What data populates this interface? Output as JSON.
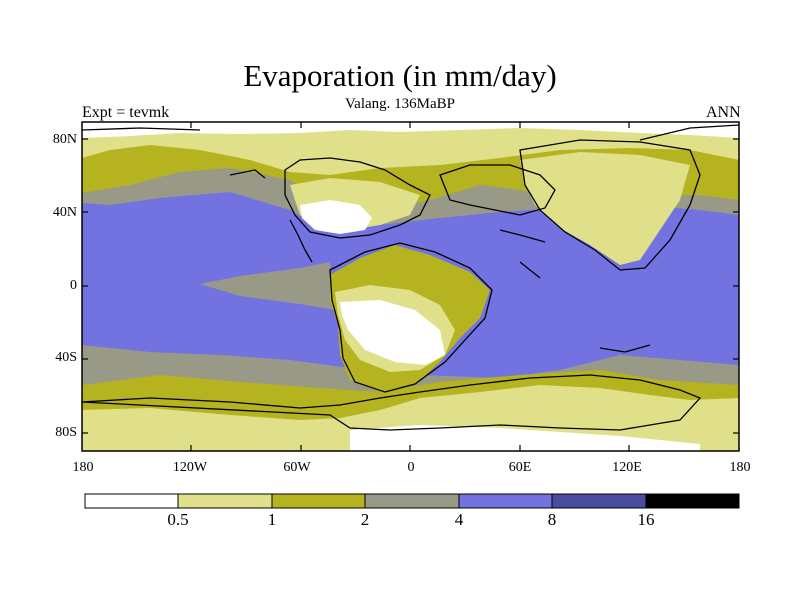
{
  "title": "Evaporation (in mm/day)",
  "subtitle": "Valang. 136MaBP",
  "left_label": "Expt = tevmk",
  "right_label": "ANN",
  "y_ticks": [
    "80N",
    "40N",
    "0",
    "40S",
    "80S"
  ],
  "x_ticks": [
    "180",
    "120W",
    "60W",
    "0",
    "60E",
    "120E",
    "180"
  ],
  "colorbar": {
    "labels": [
      "0.5",
      "1",
      "2",
      "4",
      "8",
      "16"
    ],
    "colors": [
      "#ffffff",
      "#e0e08a",
      "#b5b320",
      "#999987",
      "#7272e0",
      "#4a4aa0",
      "#000000"
    ]
  },
  "map_colors": {
    "ocean": "#7272e0",
    "grey": "#999987",
    "olive": "#b5b320",
    "light": "#e0e08a",
    "white": "#ffffff"
  }
}
